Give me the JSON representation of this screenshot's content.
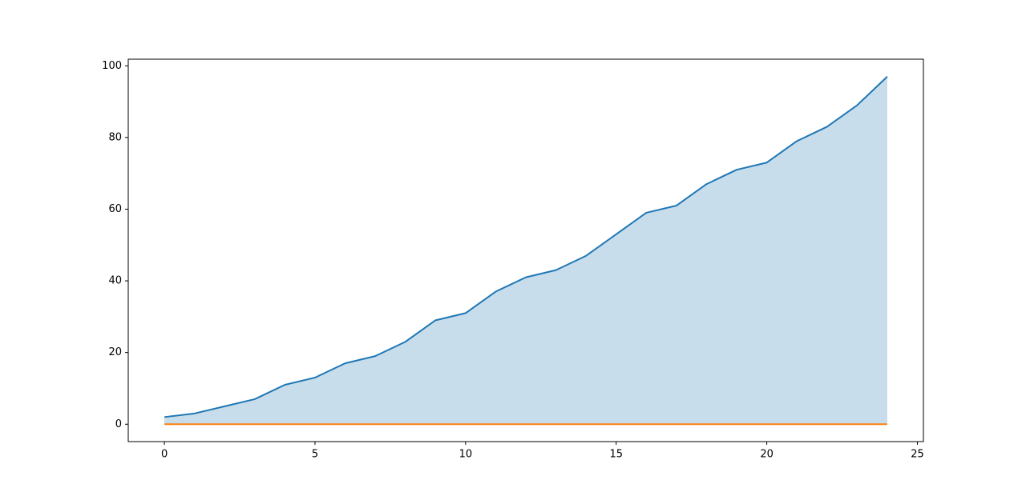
{
  "chart_data": {
    "type": "line",
    "x": [
      0,
      1,
      2,
      3,
      4,
      5,
      6,
      7,
      8,
      9,
      10,
      11,
      12,
      13,
      14,
      15,
      16,
      17,
      18,
      19,
      20,
      21,
      22,
      23,
      24
    ],
    "series": [
      {
        "color": "#1f77b4",
        "fill": true,
        "values": [
          2,
          3,
          5,
          7,
          11,
          13,
          17,
          19,
          23,
          29,
          31,
          37,
          41,
          43,
          47,
          53,
          59,
          61,
          67,
          71,
          73,
          79,
          83,
          89,
          97
        ]
      },
      {
        "color": "#ff7f0e",
        "fill": false,
        "values": [
          0,
          0,
          0,
          0,
          0,
          0,
          0,
          0,
          0,
          0,
          0,
          0,
          0,
          0,
          0,
          0,
          0,
          0,
          0,
          0,
          0,
          0,
          0,
          0,
          0
        ]
      }
    ],
    "xlim": [
      -1.2,
      25.2
    ],
    "xticks": [
      0,
      5,
      10,
      15,
      20,
      25
    ],
    "ylim": [
      -4.85,
      101.85
    ],
    "yticks": [
      0,
      20,
      40,
      60,
      80,
      100
    ],
    "grid": false
  }
}
